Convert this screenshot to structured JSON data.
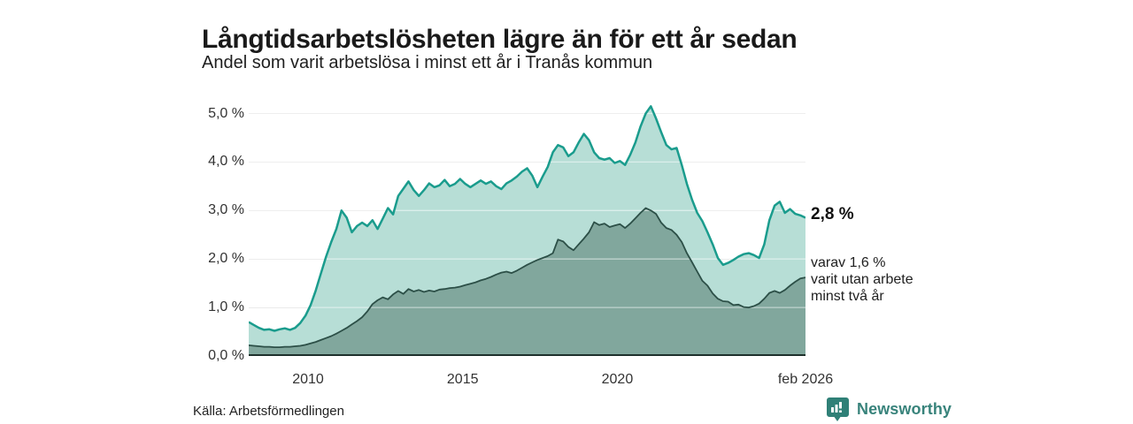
{
  "header": {
    "title": "Långtidsarbetslösheten lägre än för ett år sedan",
    "subtitle": "Andel som varit arbetslösa i minst ett år i Tranås kommun"
  },
  "annotations": {
    "end_value_label": "2,8 %",
    "secondary_label": "varav 1,6 %\nvarit utan arbete\nminst två år"
  },
  "footer": {
    "source": "Källa: Arbetsförmedlingen",
    "brand": "Newsworthy"
  },
  "colors": {
    "accent_teal": "#1a9c8d",
    "light_fill": "#b7ded6",
    "dark_fill": "#81a79d",
    "dark_line": "#2c4f47",
    "baseline": "#1e312c",
    "gridline": "#dcdcdc",
    "brand_teal": "#38837b",
    "badge_teal": "#2f8077"
  },
  "chart_data": {
    "type": "area",
    "title": "Långtidsarbetslösheten lägre än för ett år sedan",
    "subtitle": "Andel som varit arbetslösa i minst ett år i Tranås kommun",
    "unit": "%",
    "grid": true,
    "ylim": [
      0,
      5.2
    ],
    "x_start": 2008.083,
    "x_end": 2026.083,
    "x_step": 0.1667,
    "y_ticks": [
      {
        "label": "5,0 %",
        "value": 5
      },
      {
        "label": "4,0 %",
        "value": 4
      },
      {
        "label": "3,0 %",
        "value": 3
      },
      {
        "label": "2,0 %",
        "value": 2
      },
      {
        "label": "1,0 %",
        "value": 1
      },
      {
        "label": "0,0 %",
        "value": 0
      }
    ],
    "x_ticks": [
      {
        "label": "2010",
        "year": 2010
      },
      {
        "label": "2015",
        "year": 2015
      },
      {
        "label": "2020",
        "year": 2020
      },
      {
        "label": "feb 2026",
        "year": 2026.083
      }
    ],
    "series": [
      {
        "name": "Andel arbetslösa minst ett år",
        "end_value": 2.8,
        "line_color": "#1a9c8d",
        "fill_color": "#b7ded6",
        "line_width": 2.5,
        "values": [
          0.7,
          0.64,
          0.58,
          0.54,
          0.55,
          0.52,
          0.55,
          0.57,
          0.54,
          0.58,
          0.68,
          0.83,
          1.05,
          1.35,
          1.7,
          2.05,
          2.35,
          2.62,
          3.0,
          2.85,
          2.55,
          2.68,
          2.75,
          2.68,
          2.8,
          2.62,
          2.83,
          3.05,
          2.92,
          3.3,
          3.45,
          3.6,
          3.42,
          3.3,
          3.42,
          3.56,
          3.48,
          3.52,
          3.63,
          3.5,
          3.55,
          3.65,
          3.55,
          3.48,
          3.55,
          3.62,
          3.55,
          3.6,
          3.5,
          3.44,
          3.56,
          3.62,
          3.7,
          3.8,
          3.87,
          3.72,
          3.48,
          3.7,
          3.9,
          4.2,
          4.35,
          4.3,
          4.12,
          4.2,
          4.4,
          4.58,
          4.45,
          4.2,
          4.08,
          4.05,
          4.08,
          3.98,
          4.02,
          3.94,
          4.15,
          4.4,
          4.73,
          5.0,
          5.15,
          4.9,
          4.62,
          4.35,
          4.26,
          4.29,
          3.94,
          3.55,
          3.22,
          2.95,
          2.78,
          2.55,
          2.3,
          2.02,
          1.88,
          1.92,
          1.98,
          2.05,
          2.1,
          2.12,
          2.08,
          2.02,
          2.3,
          2.8,
          3.1,
          3.18,
          2.95,
          3.03,
          2.93,
          2.9,
          2.85
        ]
      },
      {
        "name": "varav utan arbete minst två år",
        "end_value": 1.6,
        "line_color": "#2c4f47",
        "fill_color": "#81a79d",
        "line_width": 1.8,
        "values": [
          0.22,
          0.21,
          0.2,
          0.19,
          0.19,
          0.18,
          0.18,
          0.19,
          0.19,
          0.2,
          0.21,
          0.23,
          0.26,
          0.29,
          0.33,
          0.37,
          0.41,
          0.46,
          0.52,
          0.58,
          0.65,
          0.72,
          0.8,
          0.92,
          1.07,
          1.15,
          1.21,
          1.17,
          1.27,
          1.34,
          1.28,
          1.38,
          1.33,
          1.36,
          1.32,
          1.35,
          1.33,
          1.37,
          1.38,
          1.4,
          1.41,
          1.43,
          1.46,
          1.49,
          1.52,
          1.56,
          1.59,
          1.63,
          1.68,
          1.72,
          1.74,
          1.71,
          1.76,
          1.82,
          1.88,
          1.93,
          1.98,
          2.02,
          2.06,
          2.12,
          2.4,
          2.36,
          2.25,
          2.18,
          2.3,
          2.42,
          2.55,
          2.76,
          2.7,
          2.73,
          2.66,
          2.69,
          2.72,
          2.64,
          2.73,
          2.84,
          2.95,
          3.05,
          3.0,
          2.93,
          2.75,
          2.64,
          2.6,
          2.5,
          2.35,
          2.12,
          1.93,
          1.74,
          1.55,
          1.45,
          1.29,
          1.18,
          1.13,
          1.12,
          1.05,
          1.06,
          1.01,
          1.0,
          1.03,
          1.08,
          1.18,
          1.3,
          1.34,
          1.3,
          1.36,
          1.45,
          1.53,
          1.6,
          1.62
        ]
      }
    ]
  }
}
